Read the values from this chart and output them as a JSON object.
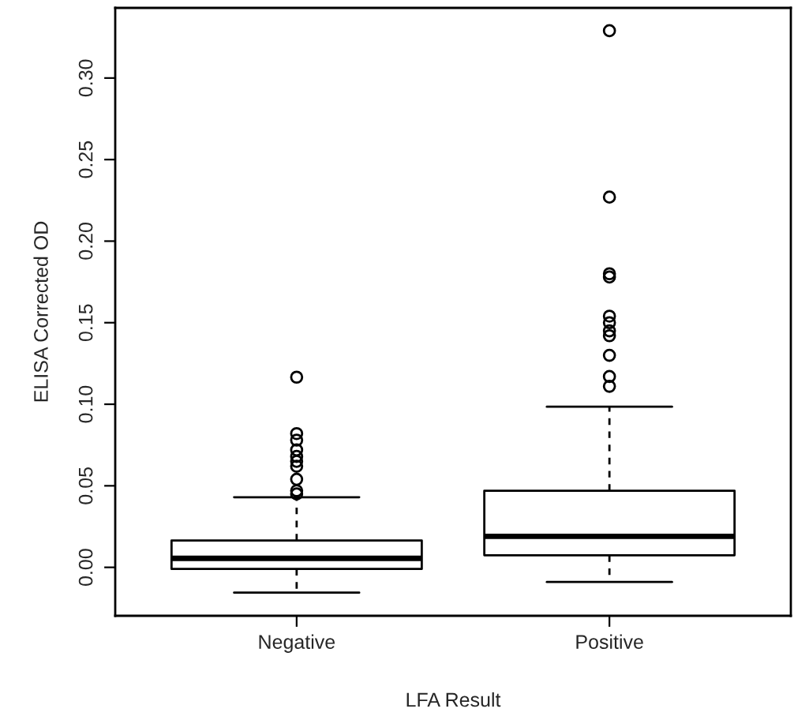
{
  "chart_data": {
    "type": "box",
    "xlabel": "LFA Result",
    "ylabel": "ELISA Corrected OD",
    "categories": [
      "Negative",
      "Positive"
    ],
    "boxes": [
      {
        "low": -0.0155,
        "q1": -0.001,
        "median": 0.0055,
        "q3": 0.0165,
        "high": 0.043,
        "outliers": [
          0.1166,
          0.082,
          0.078,
          0.072,
          0.068,
          0.065,
          0.062,
          0.054,
          0.047,
          0.045
        ]
      },
      {
        "low": -0.009,
        "q1": 0.0074,
        "median": 0.019,
        "q3": 0.047,
        "high": 0.0985,
        "outliers": [
          0.329,
          0.227,
          0.18,
          0.178,
          0.154,
          0.15,
          0.145,
          0.142,
          0.13,
          0.117,
          0.111
        ]
      }
    ],
    "ylim": [
      -0.0297,
      0.343
    ],
    "yticks": [
      {
        "value": 0,
        "label": "0.00"
      },
      {
        "value": 0.05,
        "label": "0.05"
      },
      {
        "value": 0.1,
        "label": "0.10"
      },
      {
        "value": 0.15,
        "label": "0.15"
      },
      {
        "value": 0.2,
        "label": "0.20"
      },
      {
        "value": 0.25,
        "label": "0.25"
      },
      {
        "value": 0.3,
        "label": "0.30"
      }
    ],
    "grid": false,
    "marker": "circle"
  }
}
